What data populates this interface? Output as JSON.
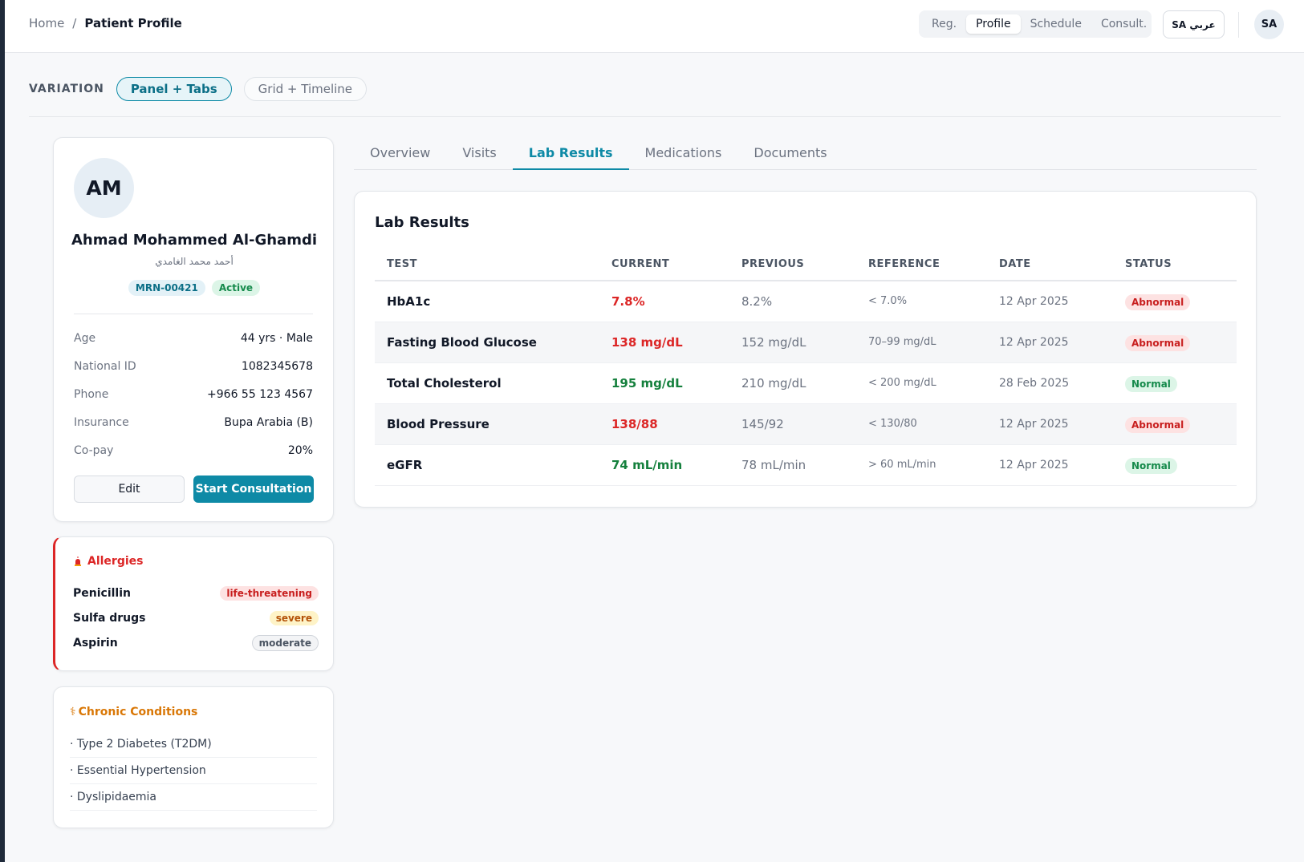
{
  "breadcrumb": {
    "home": "Home",
    "separator": "/",
    "current": "Patient Profile"
  },
  "nav": {
    "items": [
      "Reg.",
      "Profile",
      "Schedule",
      "Consult."
    ],
    "active_index": 1
  },
  "language_button": "SA عربي",
  "user_avatar": "SA",
  "variation": {
    "label": "VARIATION",
    "options": [
      "Panel + Tabs",
      "Grid + Timeline"
    ],
    "active_index": 0
  },
  "patient": {
    "initials": "AM",
    "name": "Ahmad Mohammed Al-Ghamdi",
    "name_ar": "أحمد محمد الغامدي",
    "mrn": "MRN-00421",
    "status": "Active",
    "info": [
      {
        "label": "Age",
        "value": "44 yrs · Male"
      },
      {
        "label": "National ID",
        "value": "1082345678"
      },
      {
        "label": "Phone",
        "value": "+966 55 123 4567"
      },
      {
        "label": "Insurance",
        "value": "Bupa Arabia (B)"
      },
      {
        "label": "Co-pay",
        "value": "20%"
      }
    ],
    "edit_label": "Edit",
    "start_label": "Start Consultation"
  },
  "allergies": {
    "title": "Allergies",
    "items": [
      {
        "name": "Penicillin",
        "severity": "life-threatening"
      },
      {
        "name": "Sulfa drugs",
        "severity": "severe"
      },
      {
        "name": "Aspirin",
        "severity": "moderate"
      }
    ]
  },
  "chronic": {
    "title": "Chronic Conditions",
    "items": [
      "· Type 2 Diabetes (T2DM)",
      "· Essential Hypertension",
      "· Dyslipidaemia"
    ]
  },
  "tabs": {
    "items": [
      "Overview",
      "Visits",
      "Lab Results",
      "Medications",
      "Documents"
    ],
    "active_index": 2
  },
  "lab": {
    "title": "Lab Results",
    "columns": [
      "TEST",
      "CURRENT",
      "PREVIOUS",
      "REFERENCE",
      "DATE",
      "STATUS"
    ],
    "rows": [
      {
        "test": "HbA1c",
        "current": "7.8%",
        "previous": "8.2%",
        "reference": "< 7.0%",
        "date": "12 Apr 2025",
        "status": "Abnormal"
      },
      {
        "test": "Fasting Blood Glucose",
        "current": "138 mg/dL",
        "previous": "152 mg/dL",
        "reference": "70–99 mg/dL",
        "date": "12 Apr 2025",
        "status": "Abnormal"
      },
      {
        "test": "Total Cholesterol",
        "current": "195 mg/dL",
        "previous": "210 mg/dL",
        "reference": "< 200 mg/dL",
        "date": "28 Feb 2025",
        "status": "Normal"
      },
      {
        "test": "Blood Pressure",
        "current": "138/88",
        "previous": "145/92",
        "reference": "< 130/80",
        "date": "12 Apr 2025",
        "status": "Abnormal"
      },
      {
        "test": "eGFR",
        "current": "74 mL/min",
        "previous": "78 mL/min",
        "reference": "> 60 mL/min",
        "date": "12 Apr 2025",
        "status": "Normal"
      }
    ]
  },
  "colors": {
    "accent": "#0e8aa6",
    "abnormal": "#dc2626",
    "normal": "#15803d",
    "warning": "#d97706"
  },
  "icons": {
    "allergy": "siren-icon",
    "chronic": "staff-icon"
  }
}
